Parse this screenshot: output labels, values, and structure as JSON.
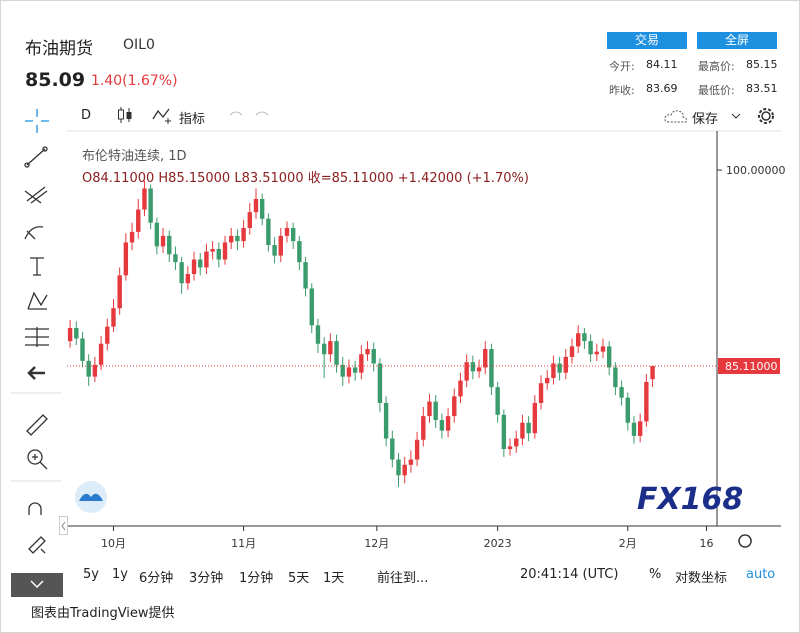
{
  "header": {
    "title": "布油期货",
    "symbol": "OIL0",
    "price": "85.09",
    "change": "1.40(1.67%)",
    "buttons": [
      "交易",
      "全屏"
    ],
    "stats": [
      {
        "label": "今开:",
        "value": "84.11"
      },
      {
        "label": "最高价:",
        "value": "85.15"
      },
      {
        "label": "昨收:",
        "value": "83.69"
      },
      {
        "label": "最低价:",
        "value": "83.51"
      }
    ]
  },
  "toolbar": {
    "interval": "D",
    "indicators": "指标",
    "save": "保存"
  },
  "chart_data": {
    "type": "candlestick",
    "legend": "布伦特油连续, 1D",
    "ohlc_text": "O84.11000 H85.15000 L83.51000 收=85.11000 +1.42000 (+1.70%)",
    "up_color": "#e5393d",
    "down_color": "#3a9b6c",
    "open": [
      87.0,
      88.0,
      87.2,
      85.5,
      84.3,
      85.2,
      86.8,
      88.1,
      89.5,
      92.0,
      94.5,
      95.3,
      97.0,
      98.6,
      96.0,
      94.2,
      95.0,
      93.6,
      93.0,
      91.4,
      92.1,
      93.2,
      92.6,
      93.8,
      94.0,
      93.2,
      94.5,
      95.0,
      94.6,
      95.6,
      96.8,
      97.8,
      96.3,
      94.3,
      93.5,
      95.0,
      95.6,
      94.6,
      93.0,
      91.0,
      88.2,
      86.8,
      86.0,
      87.0,
      85.2,
      84.3,
      85.0,
      84.6,
      86.0,
      86.4,
      85.3,
      82.3,
      79.6,
      78.0,
      76.8,
      77.6,
      78.0,
      79.5,
      81.3,
      82.4,
      81.0,
      80.2,
      81.3,
      82.8,
      84.0,
      85.4,
      84.7,
      85.0,
      86.4,
      83.5,
      81.4,
      78.8,
      79.0,
      79.6,
      80.8,
      80.0,
      82.3,
      83.8,
      84.2,
      85.3,
      84.6,
      85.8,
      86.6,
      87.6,
      87.0,
      86.0,
      86.2,
      86.6,
      85.0,
      83.5,
      82.7,
      80.8,
      79.8,
      80.9,
      84.11
    ],
    "high": [
      88.6,
      88.5,
      87.7,
      86.0,
      85.8,
      87.4,
      88.7,
      90.2,
      92.6,
      95.2,
      96.0,
      97.8,
      99.2,
      98.9,
      96.4,
      95.6,
      95.4,
      94.2,
      93.4,
      92.7,
      93.8,
      93.7,
      94.4,
      94.6,
      94.5,
      95.0,
      95.6,
      95.5,
      96.2,
      97.5,
      98.6,
      98.2,
      96.7,
      94.9,
      95.6,
      96.1,
      96.0,
      95.0,
      93.4,
      91.4,
      88.7,
      87.3,
      87.6,
      87.5,
      85.8,
      85.6,
      85.5,
      86.7,
      87.0,
      86.9,
      85.7,
      82.8,
      80.2,
      78.5,
      78.2,
      78.7,
      80.1,
      82.0,
      83.0,
      82.9,
      81.5,
      81.9,
      83.4,
      84.6,
      86.0,
      85.9,
      85.6,
      87.0,
      86.8,
      83.9,
      81.8,
      79.6,
      80.2,
      81.4,
      81.3,
      82.9,
      84.4,
      84.8,
      85.9,
      85.8,
      86.4,
      87.2,
      88.2,
      88.0,
      87.5,
      86.8,
      87.2,
      87.0,
      85.4,
      84.0,
      83.1,
      81.3,
      81.5,
      84.5,
      85.15
    ],
    "low": [
      86.5,
      86.7,
      85.0,
      83.6,
      83.9,
      84.8,
      86.3,
      87.7,
      89.0,
      91.6,
      93.9,
      94.8,
      96.5,
      95.5,
      93.6,
      93.7,
      93.0,
      92.4,
      90.6,
      90.9,
      91.6,
      92.0,
      92.1,
      93.2,
      92.6,
      92.8,
      94.0,
      93.9,
      94.1,
      95.1,
      96.3,
      95.8,
      93.8,
      92.9,
      93.0,
      94.5,
      94.0,
      92.4,
      90.4,
      87.6,
      86.1,
      84.2,
      85.4,
      84.6,
      83.6,
      83.8,
      84.0,
      84.1,
      85.5,
      84.7,
      81.6,
      79.0,
      77.4,
      75.9,
      76.2,
      77.0,
      77.5,
      79.0,
      80.8,
      80.4,
      79.6,
      79.7,
      80.8,
      82.3,
      83.5,
      84.1,
      84.2,
      84.5,
      82.9,
      80.8,
      78.2,
      78.3,
      78.5,
      79.1,
      79.4,
      79.6,
      81.8,
      83.3,
      83.7,
      84.0,
      84.1,
      85.3,
      86.1,
      86.4,
      85.4,
      85.5,
      85.7,
      84.4,
      82.9,
      82.1,
      80.2,
      79.2,
      79.3,
      80.5,
      83.51
    ],
    "close": [
      88.0,
      87.2,
      85.5,
      84.3,
      85.2,
      86.8,
      88.1,
      89.5,
      92.0,
      94.5,
      95.3,
      97.0,
      98.6,
      96.0,
      94.2,
      95.0,
      93.6,
      93.0,
      91.4,
      92.1,
      93.2,
      92.6,
      93.8,
      94.0,
      93.2,
      94.5,
      95.0,
      94.6,
      95.6,
      96.8,
      97.8,
      96.3,
      94.3,
      93.5,
      95.0,
      95.6,
      94.6,
      93.0,
      91.0,
      88.2,
      86.8,
      86.0,
      87.0,
      85.2,
      84.3,
      85.0,
      84.6,
      86.0,
      86.4,
      85.3,
      82.3,
      79.6,
      78.0,
      76.8,
      77.6,
      78.0,
      79.5,
      81.3,
      82.4,
      81.0,
      80.2,
      81.3,
      82.8,
      84.0,
      85.4,
      84.7,
      85.0,
      86.4,
      83.5,
      81.4,
      78.8,
      79.0,
      79.6,
      80.8,
      80.0,
      82.3,
      83.8,
      84.2,
      85.3,
      84.6,
      85.8,
      86.6,
      87.6,
      87.0,
      86.0,
      86.2,
      86.6,
      85.0,
      83.5,
      82.7,
      80.8,
      79.8,
      80.9,
      83.9,
      85.11
    ],
    "xlim": [
      -0.5,
      104.4
    ],
    "xticks": [
      {
        "value": 7,
        "label": "10月"
      },
      {
        "value": 28,
        "label": "11月"
      },
      {
        "value": 49.5,
        "label": "12月"
      },
      {
        "value": 69,
        "label": "2023"
      },
      {
        "value": 90,
        "label": "2月"
      },
      {
        "value": 102.7,
        "label": "16"
      }
    ],
    "ylim": [
      72.95,
      102.74
    ],
    "yticks": [
      {
        "value": 100,
        "label": "100.00000"
      }
    ],
    "last_price": {
      "value": 85.11,
      "label": "85.11000"
    }
  },
  "bottom_bar": {
    "ranges": [
      "5y",
      "1y",
      "6分钟",
      "3分钟",
      "1分钟",
      "5天",
      "1天"
    ],
    "goto": "前往到...",
    "time": "20:41:14 (UTC)",
    "percent": "%",
    "log": "对数坐标",
    "auto": "auto"
  },
  "watermark": "FX168",
  "footer": "图表由TradingView提供"
}
